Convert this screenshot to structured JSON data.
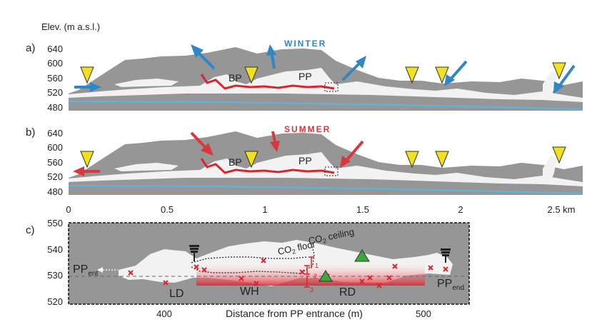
{
  "elev_axis_label": "Elev. (m a.s.l.)",
  "panels": {
    "a": {
      "label": "a)",
      "season": "WINTER",
      "season_color": "#2f87c6",
      "yticks": [
        "640",
        "600",
        "560",
        "520",
        "480"
      ]
    },
    "b": {
      "label": "b)",
      "season": "SUMMER",
      "season_color": "#d9363e",
      "yticks": [
        "640",
        "600",
        "560",
        "520",
        "480"
      ]
    },
    "c": {
      "label": "c)",
      "yticks": [
        "550",
        "540",
        "530",
        "520"
      ],
      "xticks": [
        "400",
        "500"
      ]
    }
  },
  "shared_xticks": [
    "0",
    "0.5",
    "1",
    "1.5",
    "2",
    "2.5 km"
  ],
  "cave_labels": {
    "bp": "BP",
    "pp": "PP"
  },
  "detail": {
    "xlabel": "Distance from PP entrance (m)",
    "pp_ent": {
      "main": "PP",
      "sub": "ent"
    },
    "pp_end": {
      "main": "PP",
      "sub": "end"
    },
    "co2_floor": {
      "main": "CO",
      "sub": "2",
      "rest": " floor"
    },
    "co2_ceiling": {
      "main": "CO",
      "sub": "2",
      "rest": " ceiling"
    },
    "ld": "LD",
    "wh": "WH",
    "rd": "RD",
    "profile_marks": [
      "1",
      "2",
      "3"
    ]
  },
  "colors": {
    "rock": "#969696",
    "cave": "#f2f2f2",
    "winter_arrow": "#2f87c6",
    "summer_arrow": "#d9363e",
    "co2": "#d7262e",
    "water": "#5ab4e6",
    "entrance_marker": "#f2e21a",
    "co2_marker": "#3aa93a"
  }
}
